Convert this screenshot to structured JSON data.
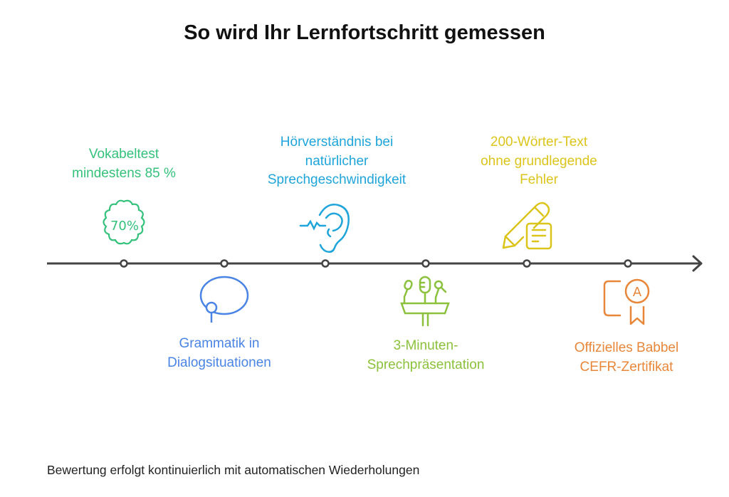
{
  "title": "So wird Ihr Lernfortschritt gemessen",
  "milestones": [
    {
      "lines": [
        "Vokabeltest",
        "mindestens 85 %"
      ],
      "icon": "badge-70-percent-icon",
      "icon_text": "70%",
      "color": "#34c17b",
      "position": "above"
    },
    {
      "lines": [
        "Grammatik in",
        "Dialogsituationen"
      ],
      "icon": "speech-bubble-icon",
      "color": "#4a84e4",
      "position": "below"
    },
    {
      "lines": [
        "Hörverständnis bei",
        "natürlicher",
        "Sprechgeschwindigkeit"
      ],
      "icon": "ear-sound-icon",
      "color": "#1fa5da",
      "position": "above"
    },
    {
      "lines": [
        "3-Minuten-",
        "Sprechpräsentation"
      ],
      "icon": "podium-microphones-icon",
      "color": "#8bc13c",
      "position": "below"
    },
    {
      "lines": [
        "200-Wörter-Text",
        "ohne grundlegende",
        "Fehler"
      ],
      "icon": "pencil-note-icon",
      "color": "#dcc51b",
      "position": "above"
    },
    {
      "lines": [
        "Offizielles Babbel",
        "CEFR-Zertifikat"
      ],
      "icon": "certificate-award-icon",
      "icon_text": "A",
      "color": "#e8873a",
      "position": "below"
    }
  ],
  "footer": "Bewertung erfolgt kontinuierlich mit automatischen Wiederholungen"
}
